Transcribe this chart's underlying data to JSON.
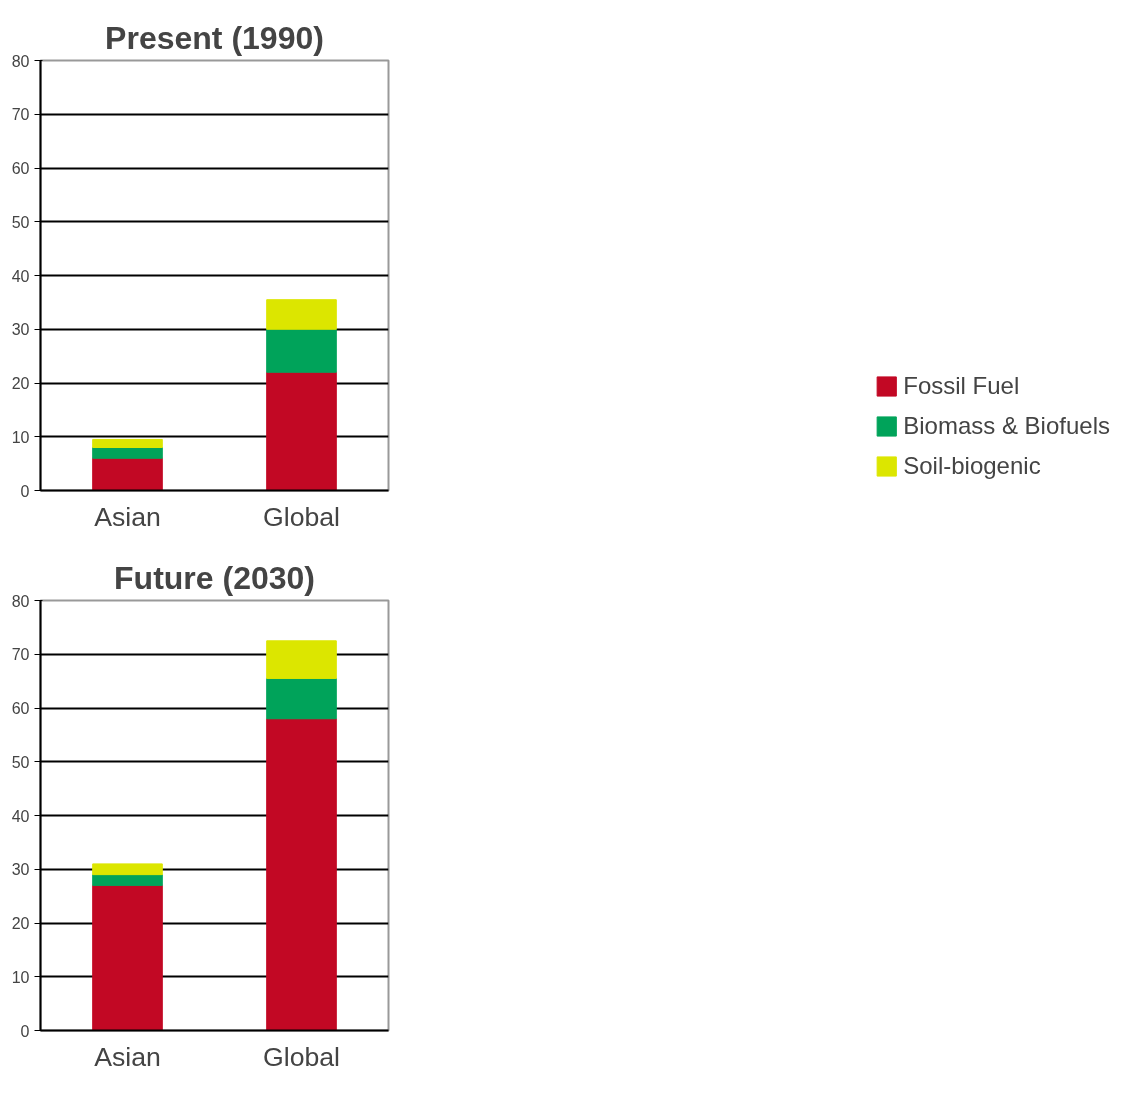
{
  "chart_data": [
    {
      "type": "bar",
      "title": "Present (1990)",
      "stacked": true,
      "categories": [
        "Asian",
        "Global"
      ],
      "series": [
        {
          "name": "Fossil Fuel",
          "color": "#c20824",
          "values": [
            6,
            22
          ]
        },
        {
          "name": "Biomass & Biofuels",
          "color": "#00a35a",
          "values": [
            2,
            8
          ]
        },
        {
          "name": "Soil-biogenic",
          "color": "#dce600",
          "values": [
            1.5,
            5.5
          ]
        }
      ],
      "ylim": [
        0,
        80
      ],
      "yticks": [
        0,
        10,
        20,
        30,
        40,
        50,
        60,
        70,
        80
      ],
      "grid": "y",
      "legend": "bottom right"
    },
    {
      "type": "bar",
      "title": "Future (2030)",
      "stacked": true,
      "categories": [
        "Asian",
        "Global"
      ],
      "series": [
        {
          "color": "#c20824",
          "values": [
            27,
            58
          ]
        },
        {
          "color": "#00a35a",
          "values": [
            2,
            7.5
          ]
        },
        {
          "color": "#dce600",
          "values": [
            2,
            7
          ]
        }
      ],
      "ylim": [
        0,
        80
      ],
      "yticks": [
        0,
        10,
        20,
        30,
        40,
        50,
        60,
        70,
        80
      ],
      "grid": "y",
      "legend": false
    }
  ]
}
